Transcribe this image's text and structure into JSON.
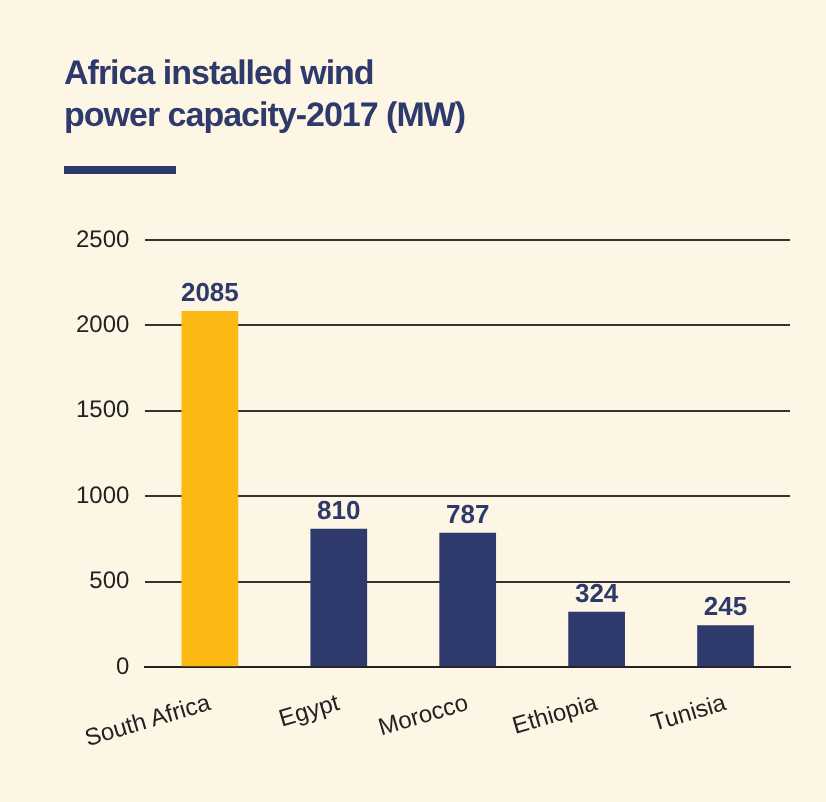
{
  "chart_data": {
    "type": "bar",
    "title": "Africa installed wind\npower capacity-2017 (MW)",
    "categories": [
      "South Africa",
      "Egypt",
      "Morocco",
      "Ethiopia",
      "Tunisia"
    ],
    "values": [
      2085,
      810,
      787,
      324,
      245
    ],
    "colors": [
      "#fdb913",
      "#2e3a6c",
      "#2e3a6c",
      "#2e3a6c",
      "#2e3a6c"
    ],
    "ylim": [
      0,
      2500
    ],
    "yticks": [
      0,
      500,
      1000,
      1500,
      2000,
      2500
    ],
    "grid": "y",
    "data_labels": true
  }
}
